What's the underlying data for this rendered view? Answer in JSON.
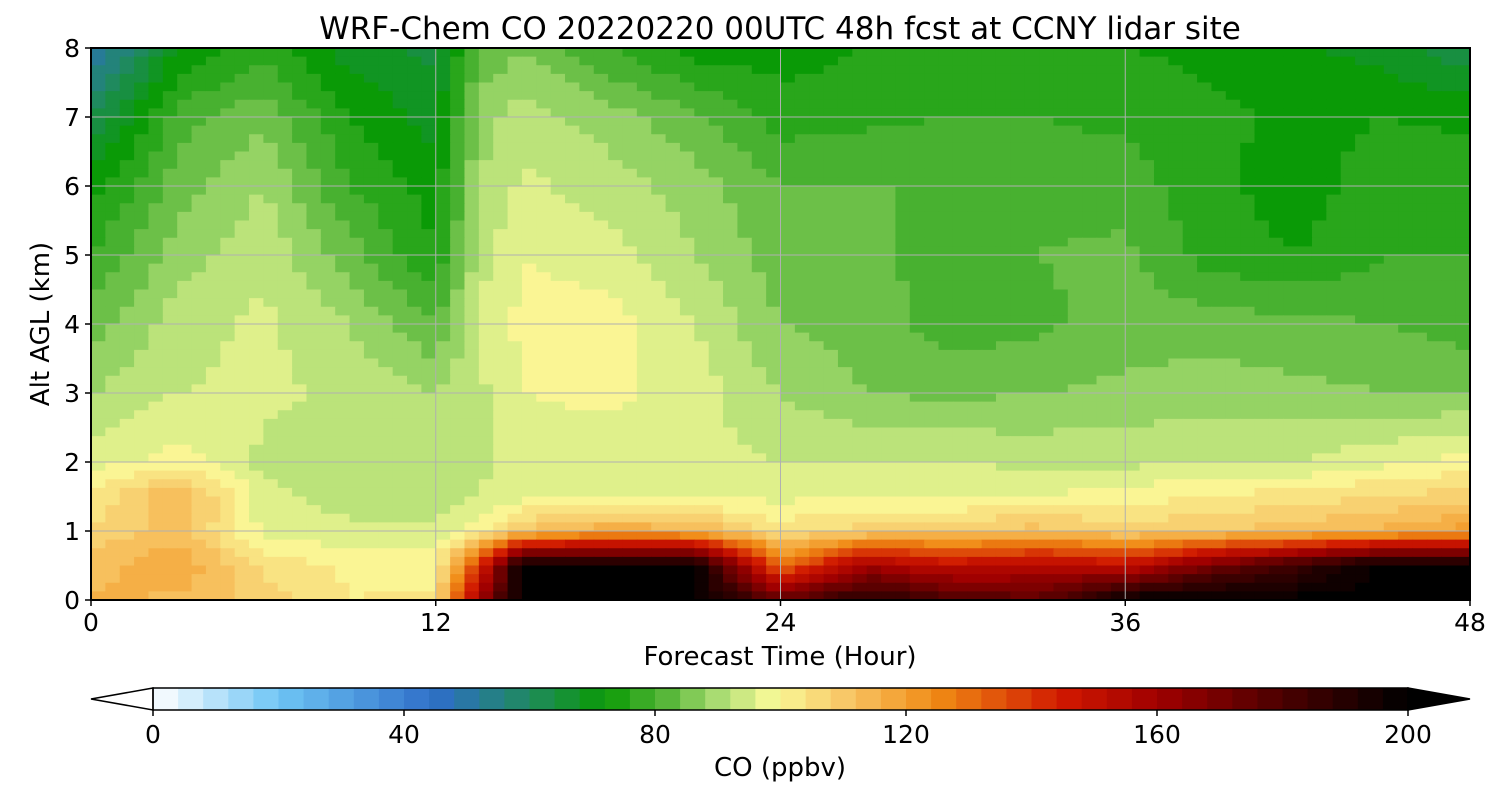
{
  "chart_data": {
    "type": "heatmap",
    "title": "WRF-Chem CO  20220220 00UTC 48h fcst at CCNY lidar site",
    "xlabel": "Forecast Time (Hour)",
    "ylabel": "Alt AGL (km)",
    "xlim": [
      0,
      48
    ],
    "ylim": [
      0,
      8
    ],
    "x_ticks": [
      0,
      12,
      24,
      36,
      48
    ],
    "y_ticks": [
      0,
      1,
      2,
      3,
      4,
      5,
      6,
      7,
      8
    ],
    "grid": true,
    "colorbar": {
      "label": "CO  (ppbv)",
      "range": [
        0,
        200
      ],
      "ticks": [
        0,
        40,
        80,
        120,
        160,
        200
      ],
      "extend": "both",
      "placement": "bottom",
      "stops": [
        {
          "v": 0,
          "c": "#ffffff"
        },
        {
          "v": 20,
          "c": "#6ec5f5"
        },
        {
          "v": 45,
          "c": "#2e6ec8"
        },
        {
          "v": 60,
          "c": "#1f8a5e"
        },
        {
          "v": 72,
          "c": "#0a9a06"
        },
        {
          "v": 82,
          "c": "#58b73a"
        },
        {
          "v": 90,
          "c": "#a9dc72"
        },
        {
          "v": 99,
          "c": "#fafa98"
        },
        {
          "v": 110,
          "c": "#f8c868"
        },
        {
          "v": 125,
          "c": "#f08a14"
        },
        {
          "v": 145,
          "c": "#d01800"
        },
        {
          "v": 160,
          "c": "#a00000"
        },
        {
          "v": 180,
          "c": "#4a0000"
        },
        {
          "v": 200,
          "c": "#000000"
        }
      ]
    },
    "x": [
      0,
      3,
      6,
      9,
      12,
      13.5,
      15,
      18,
      21,
      24,
      27,
      30,
      33,
      36,
      39,
      42,
      45,
      48
    ],
    "y": [
      0,
      0.5,
      1,
      1.5,
      2,
      3,
      4,
      5,
      6,
      7,
      8
    ],
    "z": [
      [
        115,
        113,
        108,
        102,
        103,
        160,
        200,
        200,
        200,
        175,
        190,
        180,
        175,
        200,
        200,
        200,
        200,
        200
      ],
      [
        112,
        118,
        105,
        101,
        100,
        140,
        200,
        200,
        200,
        130,
        160,
        150,
        155,
        150,
        170,
        185,
        200,
        200
      ],
      [
        107,
        112,
        97,
        95,
        95,
        100,
        110,
        118,
        115,
        104,
        108,
        110,
        112,
        108,
        110,
        112,
        115,
        120
      ],
      [
        102,
        115,
        95,
        92,
        92,
        94,
        97,
        97,
        96,
        97,
        98,
        97,
        98,
        100,
        102,
        104,
        106,
        108
      ],
      [
        96,
        100,
        93,
        92,
        92,
        93,
        95,
        96,
        95,
        94,
        94,
        94,
        93,
        93,
        94,
        94,
        97,
        100
      ],
      [
        90,
        94,
        95,
        93,
        90,
        93,
        98,
        99,
        96,
        90,
        86,
        85,
        86,
        87,
        88,
        87,
        86,
        86
      ],
      [
        84,
        92,
        95,
        90,
        82,
        95,
        99,
        100,
        94,
        86,
        84,
        80,
        81,
        84,
        84,
        83,
        82,
        80
      ],
      [
        78,
        88,
        93,
        84,
        74,
        92,
        98,
        96,
        90,
        84,
        83,
        80,
        82,
        83,
        76,
        74,
        78,
        78
      ],
      [
        72,
        84,
        90,
        78,
        72,
        90,
        95,
        92,
        88,
        82,
        82,
        82,
        81,
        80,
        75,
        72,
        76,
        77
      ],
      [
        62,
        80,
        85,
        74,
        68,
        88,
        92,
        88,
        83,
        76,
        77,
        78,
        78,
        77,
        75,
        73,
        74,
        73
      ],
      [
        48,
        70,
        76,
        68,
        65,
        82,
        86,
        78,
        72,
        72,
        74,
        75,
        74,
        74,
        73,
        71,
        68,
        63
      ]
    ]
  }
}
